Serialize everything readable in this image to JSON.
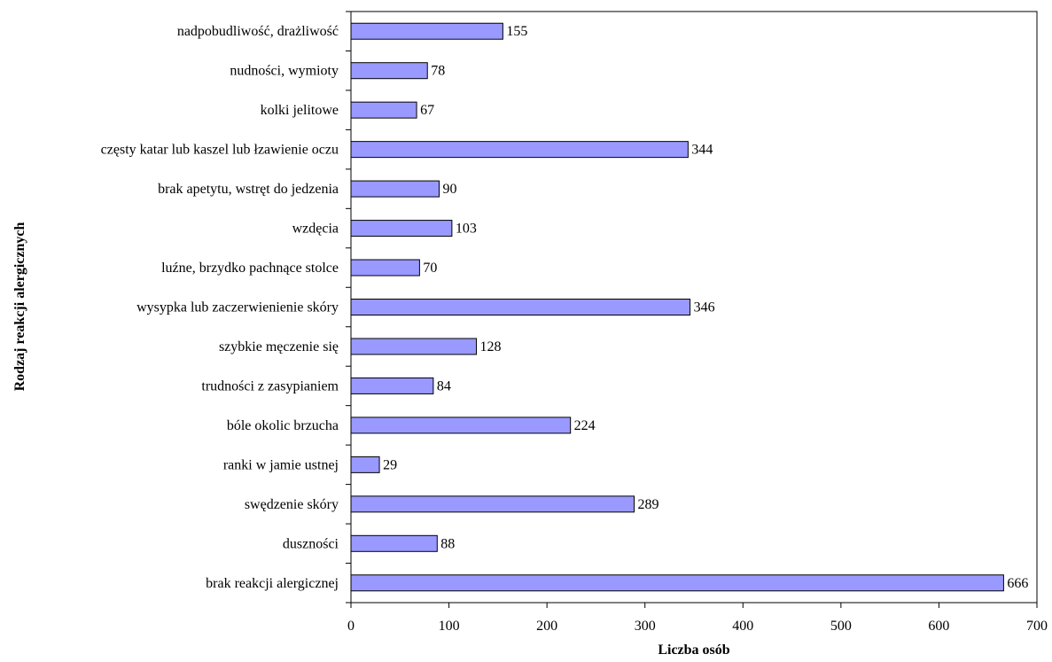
{
  "chart_data": {
    "type": "bar",
    "orientation": "horizontal",
    "xlabel": "Liczba osób",
    "ylabel": "Rodzaj reakcji alergicznych",
    "xlim": [
      0,
      700
    ],
    "xticks": [
      0,
      100,
      200,
      300,
      400,
      500,
      600,
      700
    ],
    "grid": false,
    "bar_color": "#9999ff",
    "bar_edge_color": "#000000",
    "categories": [
      "nadpobudliwość, drażliwość",
      "nudności, wymioty",
      "kolki jelitowe",
      "częsty katar lub kaszel lub łzawienie oczu",
      "brak apetytu, wstręt do jedzenia",
      "wzdęcia",
      "luźne, brzydko pachnące stolce",
      "wysypka lub zaczerwienienie skóry",
      "szybkie męczenie się",
      "trudności z zasypianiem",
      "bóle okolic brzucha",
      "ranki w jamie ustnej",
      "swędzenie skóry",
      "duszności",
      "brak reakcji alergicznej"
    ],
    "values": [
      155,
      78,
      67,
      344,
      90,
      103,
      70,
      346,
      128,
      84,
      224,
      29,
      289,
      88,
      666
    ]
  }
}
